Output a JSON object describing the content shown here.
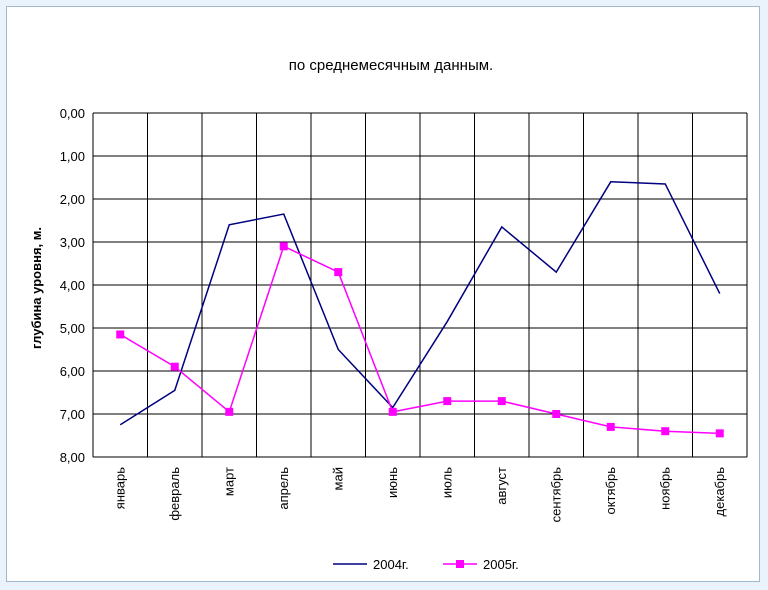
{
  "chart_data": {
    "type": "line",
    "title": "по среднемесячным данным.",
    "xlabel": "",
    "ylabel": "глубина уровня, м.",
    "ylim": [
      0,
      8
    ],
    "y_inverted": true,
    "y_ticks": [
      "0,00",
      "1,00",
      "2,00",
      "3,00",
      "4,00",
      "5,00",
      "6,00",
      "7,00",
      "8,00"
    ],
    "categories": [
      "январь",
      "февраль",
      "март",
      "апрель",
      "май",
      "июнь",
      "июль",
      "август",
      "сентябрь",
      "октябрь",
      "ноябрь",
      "декабрь"
    ],
    "grid": true,
    "legend_position": "bottom",
    "series": [
      {
        "name": "2004г.",
        "color": "#000080",
        "marker": "none",
        "values": [
          7.25,
          6.45,
          2.6,
          2.35,
          5.5,
          6.85,
          4.85,
          2.65,
          3.7,
          1.6,
          1.65,
          4.2
        ]
      },
      {
        "name": "2005г.",
        "color": "#ff00ff",
        "marker": "square",
        "values": [
          5.15,
          5.9,
          6.95,
          3.1,
          3.7,
          6.95,
          6.7,
          6.7,
          7.0,
          7.3,
          7.4,
          7.45
        ]
      }
    ]
  }
}
